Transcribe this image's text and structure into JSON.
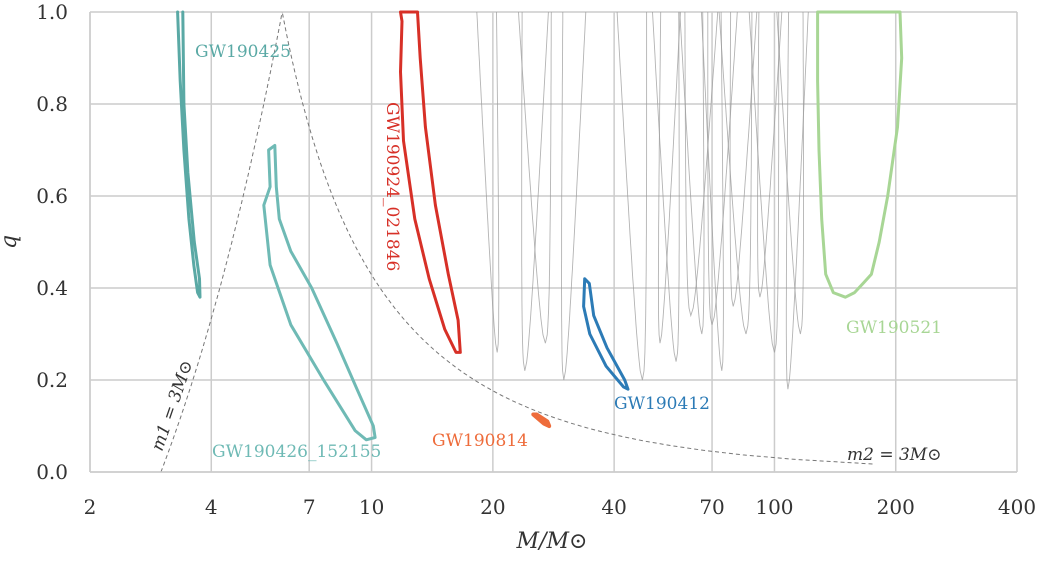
{
  "chart_data": {
    "type": "contour",
    "xlabel": "M/M⊙",
    "ylabel": "q",
    "xscale": "log",
    "xlim": [
      2,
      400
    ],
    "ylim": [
      0,
      1
    ],
    "xticks": [
      2,
      4,
      7,
      10,
      20,
      40,
      70,
      100,
      200,
      400
    ],
    "xtick_labels": [
      "2",
      "4",
      "7",
      "10",
      "20",
      "40",
      "70",
      "100",
      "200",
      "400"
    ],
    "yticks": [
      0,
      0.2,
      0.4,
      0.6,
      0.8,
      1
    ],
    "ytick_labels": [
      "0.0",
      "0.2",
      "0.4",
      "0.6",
      "0.8",
      "1.0"
    ],
    "grid": true,
    "reference_curves": [
      {
        "label": "m1 = 3M⊙",
        "relation": "M = 3(1+q)"
      },
      {
        "label": "m2 = 3M⊙",
        "relation": "M = 3(1+q)/q"
      }
    ],
    "highlighted_events": [
      {
        "name": "GW190425",
        "color": "#5aa9a5",
        "contour": [
          [
            3.3,
            1.0
          ],
          [
            3.35,
            0.85
          ],
          [
            3.42,
            0.7
          ],
          [
            3.52,
            0.55
          ],
          [
            3.62,
            0.45
          ],
          [
            3.7,
            0.39
          ],
          [
            3.75,
            0.38
          ],
          [
            3.74,
            0.42
          ],
          [
            3.63,
            0.5
          ],
          [
            3.5,
            0.65
          ],
          [
            3.42,
            0.8
          ],
          [
            3.4,
            1.0
          ]
        ]
      },
      {
        "name": "GW190426_152155",
        "color": "#6fbab5",
        "contour": [
          [
            5.55,
            0.7
          ],
          [
            5.75,
            0.71
          ],
          [
            5.8,
            0.62
          ],
          [
            5.9,
            0.55
          ],
          [
            6.3,
            0.48
          ],
          [
            7.1,
            0.4
          ],
          [
            8.2,
            0.28
          ],
          [
            9.2,
            0.18
          ],
          [
            10.1,
            0.1
          ],
          [
            10.2,
            0.075
          ],
          [
            9.7,
            0.07
          ],
          [
            9.1,
            0.09
          ],
          [
            7.6,
            0.2
          ],
          [
            6.3,
            0.32
          ],
          [
            5.6,
            0.45
          ],
          [
            5.4,
            0.58
          ],
          [
            5.6,
            0.62
          ]
        ]
      },
      {
        "name": "GW190924_021846",
        "color": "#d73027",
        "contour": [
          [
            11.8,
            1.0
          ],
          [
            13.0,
            1.0
          ],
          [
            13.2,
            0.9
          ],
          [
            13.6,
            0.75
          ],
          [
            14.4,
            0.58
          ],
          [
            15.5,
            0.43
          ],
          [
            16.4,
            0.33
          ],
          [
            16.6,
            0.26
          ],
          [
            16.2,
            0.26
          ],
          [
            15.2,
            0.31
          ],
          [
            13.9,
            0.42
          ],
          [
            12.8,
            0.55
          ],
          [
            12.0,
            0.72
          ],
          [
            11.8,
            0.87
          ],
          [
            11.9,
            0.98
          ]
        ]
      },
      {
        "name": "GW190412",
        "color": "#2c7bb6",
        "contour": [
          [
            33.8,
            0.42
          ],
          [
            34.7,
            0.41
          ],
          [
            35.6,
            0.34
          ],
          [
            38.4,
            0.27
          ],
          [
            42.5,
            0.2
          ],
          [
            43.3,
            0.18
          ],
          [
            42.2,
            0.185
          ],
          [
            38.2,
            0.23
          ],
          [
            34.8,
            0.3
          ],
          [
            33.6,
            0.36
          ]
        ]
      },
      {
        "name": "GW190814",
        "color": "#ee6c3b",
        "contour": [
          [
            25.2,
            0.125
          ],
          [
            26.8,
            0.105
          ],
          [
            27.6,
            0.1
          ],
          [
            27.3,
            0.11
          ],
          [
            25.7,
            0.125
          ]
        ]
      },
      {
        "name": "GW190521",
        "color": "#a8d695",
        "contour": [
          [
            128,
            1.0
          ],
          [
            205,
            1.0
          ],
          [
            207,
            0.9
          ],
          [
            202,
            0.75
          ],
          [
            191,
            0.6
          ],
          [
            182,
            0.5
          ],
          [
            174,
            0.43
          ],
          [
            166,
            0.41
          ],
          [
            158,
            0.39
          ],
          [
            150,
            0.38
          ],
          [
            140,
            0.39
          ],
          [
            134,
            0.43
          ],
          [
            131,
            0.55
          ],
          [
            129,
            0.7
          ],
          [
            128,
            0.85
          ]
        ]
      }
    ],
    "background_events": [
      {
        "x_center": 20.5,
        "q_min": 0.26,
        "color": "#9a9a9a"
      },
      {
        "x_center": 24,
        "q_min": 0.22,
        "color": "#9a9a9a"
      },
      {
        "x_center": 27,
        "q_min": 0.28,
        "color": "#9a9a9a"
      },
      {
        "x_center": 30,
        "q_min": 0.2,
        "color": "#9a9a9a"
      },
      {
        "x_center": 47,
        "q_min": 0.2,
        "color": "#9a9a9a"
      },
      {
        "x_center": 52,
        "q_min": 0.28,
        "color": "#9a9a9a"
      },
      {
        "x_center": 57,
        "q_min": 0.24,
        "color": "#9a9a9a"
      },
      {
        "x_center": 62,
        "q_min": 0.34,
        "color": "#9a9a9a"
      },
      {
        "x_center": 66,
        "q_min": 0.3,
        "color": "#9a9a9a"
      },
      {
        "x_center": 70,
        "q_min": 0.32,
        "color": "#9a9a9a"
      },
      {
        "x_center": 74,
        "q_min": 0.22,
        "color": "#9a9a9a"
      },
      {
        "x_center": 79,
        "q_min": 0.36,
        "color": "#9a9a9a"
      },
      {
        "x_center": 85,
        "q_min": 0.3,
        "color": "#9a9a9a"
      },
      {
        "x_center": 92,
        "q_min": 0.38,
        "color": "#9a9a9a"
      },
      {
        "x_center": 100,
        "q_min": 0.26,
        "color": "#9a9a9a"
      },
      {
        "x_center": 108,
        "q_min": 0.18,
        "color": "#9a9a9a"
      },
      {
        "x_center": 116,
        "q_min": 0.3,
        "color": "#9a9a9a"
      }
    ]
  }
}
